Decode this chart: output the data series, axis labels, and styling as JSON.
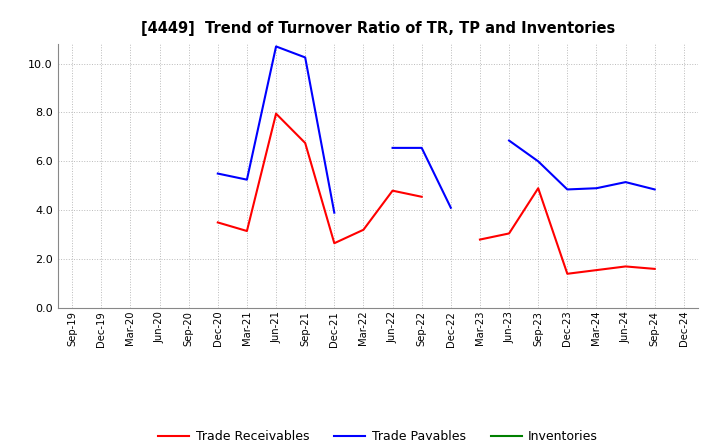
{
  "title": "[4449]  Trend of Turnover Ratio of TR, TP and Inventories",
  "x_labels": [
    "Sep-19",
    "Dec-19",
    "Mar-20",
    "Jun-20",
    "Sep-20",
    "Dec-20",
    "Mar-21",
    "Jun-21",
    "Sep-21",
    "Dec-21",
    "Mar-22",
    "Jun-22",
    "Sep-22",
    "Dec-22",
    "Mar-23",
    "Jun-23",
    "Sep-23",
    "Dec-23",
    "Mar-24",
    "Jun-24",
    "Sep-24",
    "Dec-24"
  ],
  "trade_receivables": [
    null,
    null,
    null,
    null,
    null,
    3.5,
    3.15,
    7.95,
    6.75,
    2.65,
    3.2,
    4.8,
    4.55,
    null,
    2.8,
    3.05,
    4.9,
    1.4,
    1.55,
    1.7,
    1.6,
    null
  ],
  "trade_payables": [
    null,
    null,
    null,
    null,
    null,
    5.5,
    5.25,
    10.7,
    10.25,
    3.9,
    null,
    6.55,
    6.55,
    4.1,
    null,
    6.85,
    6.0,
    4.85,
    4.9,
    5.15,
    4.85,
    null
  ],
  "inventories": [
    null,
    null,
    null,
    null,
    null,
    null,
    null,
    null,
    null,
    null,
    null,
    null,
    null,
    null,
    null,
    null,
    null,
    null,
    null,
    null,
    null,
    null
  ],
  "ylim": [
    0.0,
    10.8
  ],
  "yticks": [
    0.0,
    2.0,
    4.0,
    6.0,
    8.0,
    10.0
  ],
  "tr_color": "#ff0000",
  "tp_color": "#0000ff",
  "inv_color": "#008000",
  "legend_labels": [
    "Trade Receivables",
    "Trade Payables",
    "Inventories"
  ],
  "bg_color": "#ffffff",
  "grid_color": "#bbbbbb",
  "linewidth": 1.5
}
